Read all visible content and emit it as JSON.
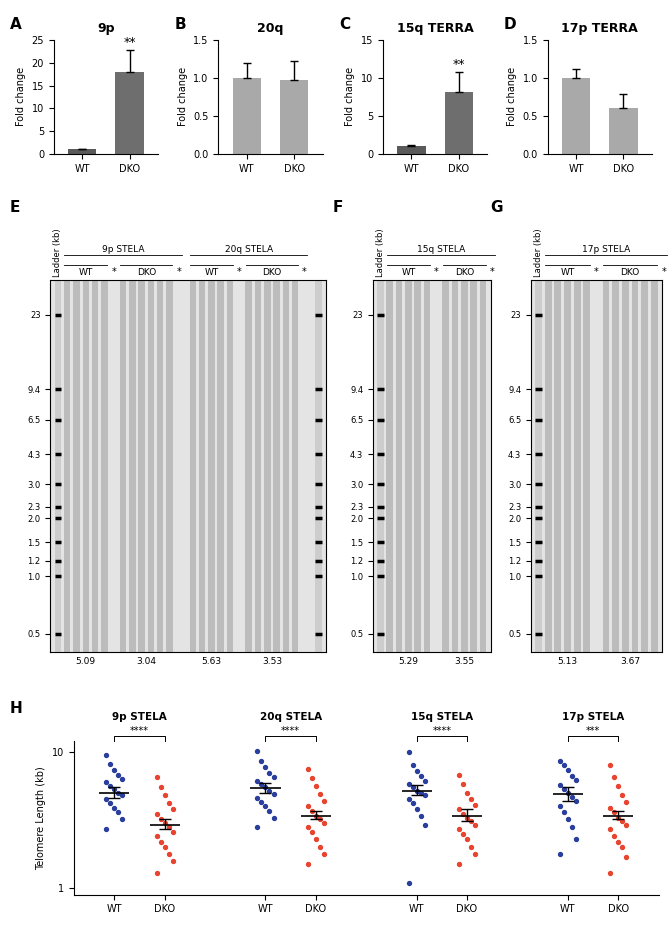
{
  "chart_data": [
    {
      "type": "bar",
      "panel": "A",
      "title": "9p",
      "ylabel": "Fold change",
      "categories": [
        "WT",
        "DKO"
      ],
      "values": [
        1.0,
        18.0
      ],
      "errors": [
        0.15,
        4.8
      ],
      "colors": [
        "#5a5a5a",
        "#6e6e6e"
      ],
      "significance": [
        null,
        "**"
      ],
      "ylim": [
        0,
        25
      ],
      "yticks": [
        0,
        5,
        10,
        15,
        20,
        25
      ]
    },
    {
      "type": "bar",
      "panel": "B",
      "title": "20q",
      "ylabel": "Fold change",
      "categories": [
        "WT",
        "DKO"
      ],
      "values": [
        1.0,
        0.97
      ],
      "errors": [
        0.2,
        0.25
      ],
      "colors": [
        "#a9a9a9",
        "#a9a9a9"
      ],
      "significance": [
        null,
        null
      ],
      "ylim": [
        0,
        1.5
      ],
      "yticks": [
        0.0,
        0.5,
        1.0,
        1.5
      ]
    },
    {
      "type": "bar",
      "panel": "C",
      "title": "15q TERRA",
      "ylabel": "Fold change",
      "categories": [
        "WT",
        "DKO"
      ],
      "values": [
        1.0,
        8.2
      ],
      "errors": [
        0.1,
        2.6
      ],
      "colors": [
        "#5a5a5a",
        "#6e6e6e"
      ],
      "significance": [
        null,
        "**"
      ],
      "ylim": [
        0,
        15
      ],
      "yticks": [
        0,
        5,
        10,
        15
      ]
    },
    {
      "type": "bar",
      "panel": "D",
      "title": "17p TERRA",
      "ylabel": "Fold change",
      "categories": [
        "WT",
        "DKO"
      ],
      "values": [
        1.0,
        0.6
      ],
      "errors": [
        0.12,
        0.19
      ],
      "colors": [
        "#a9a9a9",
        "#a9a9a9"
      ],
      "significance": [
        null,
        null
      ],
      "ylim": [
        0,
        1.5
      ],
      "yticks": [
        0.0,
        0.5,
        1.0,
        1.5
      ]
    },
    {
      "type": "gel",
      "panel": "E",
      "ladder_title": "Ladder (kb)",
      "log": "y",
      "tick_labels": "y",
      "ladder": [
        23,
        9.4,
        6.5,
        4.3,
        3.0,
        2.3,
        2.0,
        1.5,
        1.2,
        1.0,
        0.5
      ],
      "ylim": [
        0.4,
        35
      ],
      "yticks": [
        23,
        9.4,
        6.5,
        4.3,
        3.0,
        2.3,
        2.0,
        1.5,
        1.2,
        1.0,
        0.5
      ],
      "control_label": "*",
      "groups": [
        {
          "name": "9p STELA",
          "lanes": [
            {
              "name": "WT",
              "count": 5,
              "median": 5.09
            },
            {
              "name": "DKO",
              "count": 6,
              "median": 3.04
            }
          ]
        },
        {
          "name": "20q STELA",
          "lanes": [
            {
              "name": "WT",
              "count": 5,
              "median": 5.63
            },
            {
              "name": "DKO",
              "count": 6,
              "median": 3.53
            }
          ]
        }
      ]
    },
    {
      "type": "gel",
      "panel": "F",
      "ladder_title": "Ladder (kb)",
      "log": "y",
      "tick_labels": "y",
      "ladder": [
        23,
        9.4,
        6.5,
        4.3,
        3.0,
        2.3,
        2.0,
        1.5,
        1.2,
        1.0,
        0.5
      ],
      "ylim": [
        0.4,
        35
      ],
      "yticks": [
        23,
        9.4,
        6.5,
        4.3,
        3.0,
        2.3,
        2.0,
        1.5,
        1.2,
        1.0,
        0.5
      ],
      "control_label": "*",
      "groups": [
        {
          "name": "15q STELA",
          "lanes": [
            {
              "name": "WT",
              "count": 5,
              "median": 5.29
            },
            {
              "name": "DKO",
              "count": 5,
              "median": 3.55
            }
          ]
        }
      ]
    },
    {
      "type": "gel",
      "panel": "G",
      "ladder_title": "Ladder (kb)",
      "log": "y",
      "tick_labels": "y",
      "ladder": [
        23,
        9.4,
        6.5,
        4.3,
        3.0,
        2.3,
        2.0,
        1.5,
        1.2,
        1.0,
        0.5
      ],
      "ylim": [
        0.4,
        35
      ],
      "yticks": [
        23,
        9.4,
        6.5,
        4.3,
        3.0,
        2.3,
        2.0,
        1.5,
        1.2,
        1.0,
        0.5
      ],
      "control_label": "*",
      "groups": [
        {
          "name": "17p STELA",
          "lanes": [
            {
              "name": "WT",
              "count": 5,
              "median": 5.13
            },
            {
              "name": "DKO",
              "count": 6,
              "median": 3.67
            }
          ]
        }
      ]
    },
    {
      "type": "scatter",
      "panel": "H",
      "ylabel": "Telomere Length (kb)",
      "log": "y",
      "ylim": [
        0.9,
        12
      ],
      "yticks": [
        1,
        10
      ],
      "groups": [
        {
          "name": "9p STELA",
          "significance": "****",
          "series": [
            {
              "name": "WT",
              "color": "#2a3f9d",
              "mean": 5.0,
              "ci": [
                4.6,
                5.5
              ],
              "values": [
                9.5,
                8.2,
                7.4,
                6.8,
                6.3,
                6.0,
                5.6,
                5.3,
                5.0,
                4.8,
                4.5,
                4.2,
                3.9,
                3.6,
                3.2,
                2.7
              ]
            },
            {
              "name": "DKO",
              "color": "#e8442f",
              "mean": 2.9,
              "ci": [
                2.7,
                3.2
              ],
              "values": [
                6.5,
                5.5,
                4.8,
                4.2,
                3.8,
                3.5,
                3.2,
                3.0,
                2.8,
                2.6,
                2.4,
                2.2,
                2.0,
                1.8,
                1.6,
                1.3
              ]
            }
          ]
        },
        {
          "name": "20q STELA",
          "significance": "****",
          "series": [
            {
              "name": "WT",
              "color": "#2a3f9d",
              "mean": 5.4,
              "ci": [
                5.0,
                5.9
              ],
              "values": [
                10.2,
                8.6,
                7.8,
                7.0,
                6.5,
                6.1,
                5.8,
                5.5,
                5.2,
                4.9,
                4.6,
                4.3,
                4.0,
                3.7,
                3.3,
                2.8
              ]
            },
            {
              "name": "DKO",
              "color": "#e8442f",
              "mean": 3.4,
              "ci": [
                3.2,
                3.7
              ],
              "values": [
                7.5,
                6.4,
                5.6,
                4.9,
                4.4,
                4.0,
                3.7,
                3.4,
                3.2,
                3.0,
                2.8,
                2.6,
                2.3,
                2.0,
                1.8,
                1.5
              ]
            }
          ]
        },
        {
          "name": "15q STELA",
          "significance": "****",
          "series": [
            {
              "name": "WT",
              "color": "#2a3f9d",
              "mean": 5.2,
              "ci": [
                4.8,
                5.7
              ],
              "values": [
                10.0,
                8.0,
                7.2,
                6.6,
                6.1,
                5.8,
                5.5,
                5.2,
                5.0,
                4.8,
                4.5,
                4.2,
                3.8,
                3.4,
                2.9,
                1.1
              ]
            },
            {
              "name": "DKO",
              "color": "#e8442f",
              "mean": 3.4,
              "ci": [
                3.1,
                3.8
              ],
              "values": [
                6.8,
                5.8,
                5.0,
                4.5,
                4.1,
                3.8,
                3.5,
                3.3,
                3.1,
                2.9,
                2.7,
                2.5,
                2.3,
                2.0,
                1.8,
                1.5
              ]
            }
          ]
        },
        {
          "name": "17p STELA",
          "significance": "***",
          "series": [
            {
              "name": "WT",
              "color": "#2a3f9d",
              "mean": 4.9,
              "ci": [
                4.4,
                5.5
              ],
              "values": [
                8.6,
                8.0,
                7.3,
                6.7,
                6.2,
                5.7,
                5.3,
                5.0,
                4.7,
                4.4,
                4.0,
                3.6,
                3.2,
                2.8,
                2.3,
                1.8
              ]
            },
            {
              "name": "DKO",
              "color": "#e8442f",
              "mean": 3.4,
              "ci": [
                3.2,
                3.7
              ],
              "values": [
                8.0,
                6.5,
                5.6,
                4.8,
                4.3,
                3.9,
                3.6,
                3.3,
                3.1,
                2.9,
                2.7,
                2.4,
                2.2,
                2.0,
                1.7,
                1.3
              ]
            }
          ]
        }
      ]
    }
  ]
}
